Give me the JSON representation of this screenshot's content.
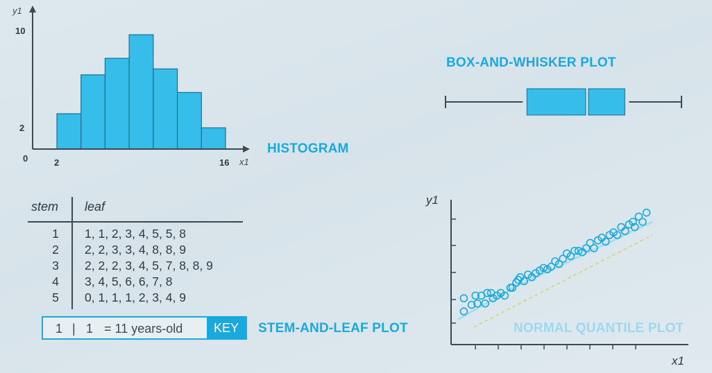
{
  "labels": {
    "histogram": "HISTOGRAM",
    "box_whisker": "BOX-AND-WHISKER PLOT",
    "stem_leaf": "STEM-AND-LEAF PLOT",
    "normal_quantile": "NORMAL QUANTILE PLOT"
  },
  "colors": {
    "accent": "#1aa9dd",
    "bar_fill": "#36bde9",
    "axis": "#3a4a52",
    "dash_line": "#d8cf72",
    "fit_line": "#a9dcf0"
  },
  "histogram": {
    "y_axis_label": "y1",
    "x_axis_label": "x1",
    "y_ticks": [
      "10",
      "2"
    ],
    "x_ticks": [
      "2",
      "16"
    ],
    "origin_label": "0"
  },
  "stem_leaf": {
    "header_stem": "stem",
    "header_leaf": "leaf",
    "rows": [
      {
        "stem": "1",
        "leaf": "1, 1, 2, 3, 4, 5, 5, 8"
      },
      {
        "stem": "2",
        "leaf": "2, 2, 3, 3, 4, 8, 8, 9"
      },
      {
        "stem": "3",
        "leaf": "2, 2, 2, 3, 4, 5, 7, 8, 8, 9"
      },
      {
        "stem": "4",
        "leaf": "3, 4, 5, 6, 6, 7, 8"
      },
      {
        "stem": "5",
        "leaf": "0, 1, 1, 1, 2, 3, 4, 9"
      }
    ],
    "key": {
      "stem": "1",
      "sep": "|",
      "leaf": "1",
      "meaning": "= 11 years-old",
      "tag": "KEY"
    }
  },
  "quantile": {
    "y_axis_label": "y1",
    "x_axis_label": "x1"
  },
  "chart_data": [
    {
      "type": "bar",
      "x_bins": [
        [
          2,
          4
        ],
        [
          4,
          6
        ],
        [
          6,
          8
        ],
        [
          8,
          10
        ],
        [
          10,
          12
        ],
        [
          12,
          14
        ],
        [
          14,
          16
        ]
      ],
      "values": [
        3,
        6.3,
        7.7,
        9.7,
        6.8,
        4.8,
        1.8
      ],
      "xlim": [
        0,
        16
      ],
      "ylim": [
        0,
        10
      ],
      "xlabel": "x1",
      "ylabel": "y1"
    },
    {
      "type": "box",
      "min": 0,
      "q1": 34.5,
      "median": 60,
      "q3": 76,
      "max": 100,
      "xlim": [
        0,
        100
      ]
    },
    {
      "type": "scatter",
      "xlabel": "x1",
      "ylabel": "y1",
      "xlim": [
        0,
        100
      ],
      "ylim": [
        0,
        100
      ],
      "points": [
        [
          3,
          12
        ],
        [
          3,
          22
        ],
        [
          7,
          17
        ],
        [
          9,
          24
        ],
        [
          10,
          18
        ],
        [
          12,
          24
        ],
        [
          14,
          18
        ],
        [
          15,
          26
        ],
        [
          17,
          26
        ],
        [
          18,
          22
        ],
        [
          20,
          24
        ],
        [
          22,
          26
        ],
        [
          24,
          24
        ],
        [
          27,
          30
        ],
        [
          28,
          30
        ],
        [
          30,
          34
        ],
        [
          31,
          36
        ],
        [
          32,
          38
        ],
        [
          34,
          35
        ],
        [
          36,
          40
        ],
        [
          38,
          38
        ],
        [
          40,
          41
        ],
        [
          42,
          43
        ],
        [
          44,
          45
        ],
        [
          46,
          44
        ],
        [
          48,
          46
        ],
        [
          50,
          50
        ],
        [
          52,
          48
        ],
        [
          54,
          52
        ],
        [
          56,
          56
        ],
        [
          58,
          54
        ],
        [
          60,
          58
        ],
        [
          62,
          58
        ],
        [
          64,
          57
        ],
        [
          66,
          60
        ],
        [
          68,
          64
        ],
        [
          70,
          60
        ],
        [
          72,
          66
        ],
        [
          74,
          68
        ],
        [
          76,
          65
        ],
        [
          78,
          70
        ],
        [
          80,
          72
        ],
        [
          82,
          70
        ],
        [
          84,
          76
        ],
        [
          86,
          73
        ],
        [
          88,
          78
        ],
        [
          90,
          80
        ],
        [
          91,
          76
        ],
        [
          93,
          84
        ],
        [
          95,
          80
        ],
        [
          97,
          87
        ]
      ],
      "series": [
        {
          "name": "",
          "style": "dashed",
          "values": [
            [
              8,
              0
            ],
            [
              100,
              70
            ]
          ]
        },
        {
          "name": "",
          "style": "solid",
          "values": [
            [
              0,
              6
            ],
            [
              30,
              31
            ],
            [
              60,
              52
            ],
            [
              100,
              80
            ]
          ]
        }
      ]
    }
  ]
}
